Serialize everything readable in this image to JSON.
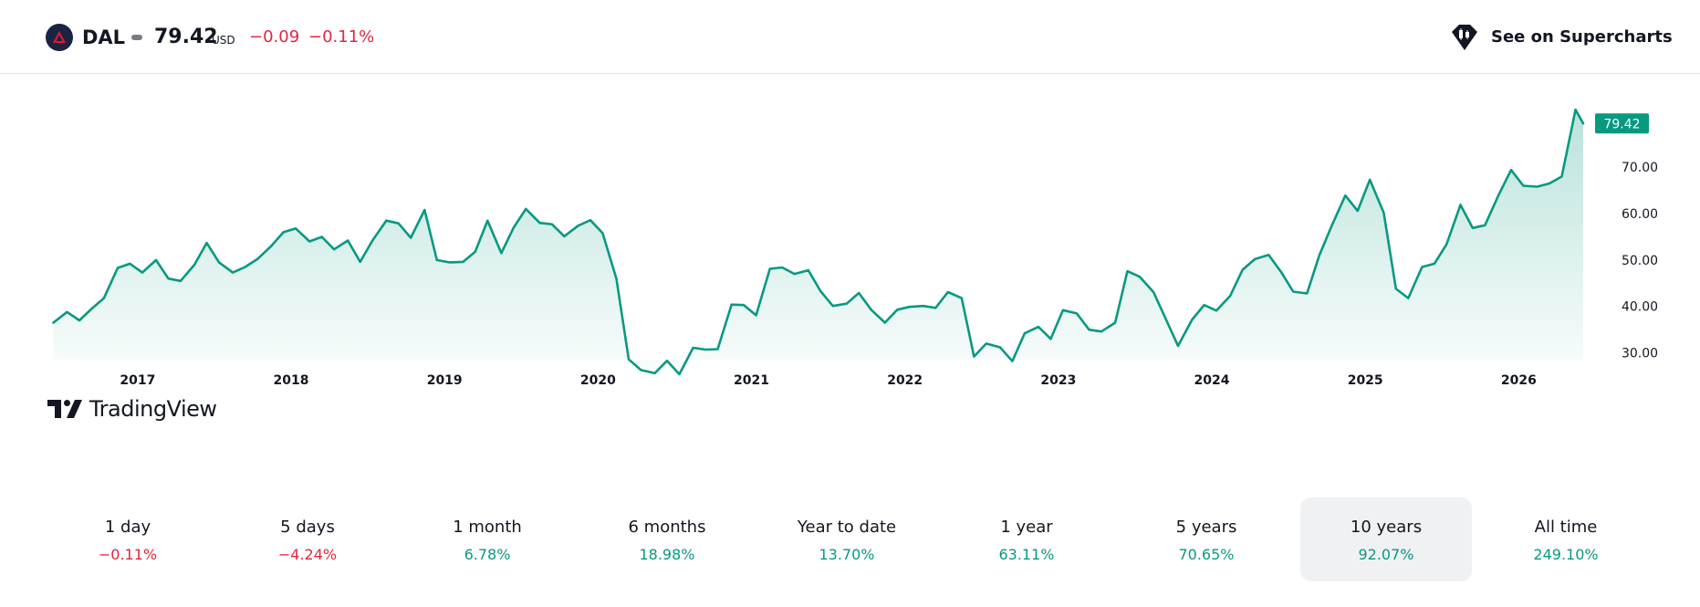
{
  "header": {
    "symbol": "DAL",
    "price": "79.42",
    "currency": "USD",
    "change": "−0.09",
    "change_percent": "−0.11%",
    "supercharts_label": "See on Supercharts",
    "logo_icon": "delta-logo-icon",
    "supercharts_icon": "tradingview-supercharts-icon"
  },
  "brand": {
    "name": "TradingView",
    "icon": "tradingview-logo-icon"
  },
  "colors": {
    "line": "#089981",
    "negative": "#e0263f",
    "positive": "#089981",
    "price_tag": "#089981"
  },
  "chart_data": {
    "type": "area",
    "x_tick_labels": [
      "2017",
      "2018",
      "2019",
      "2020",
      "2021",
      "2022",
      "2023",
      "2024",
      "2025",
      "2026"
    ],
    "x_tick_values": [
      2017,
      2018,
      2019,
      2020,
      2021,
      2022,
      2023,
      2024,
      2025,
      2026
    ],
    "y_tick_labels": [
      "30.00",
      "40.00",
      "50.00",
      "60.00",
      "70.00"
    ],
    "y_tick_values": [
      30,
      40,
      50,
      60,
      70
    ],
    "xlim": [
      2016.43,
      2026.42
    ],
    "ylim": [
      25,
      84
    ],
    "last_value_label": "79.42",
    "grid": false,
    "series": [
      {
        "x": [
          2016.45,
          2016.54,
          2016.62,
          2016.7,
          2016.78,
          2016.87,
          2016.95,
          2017.03,
          2017.12,
          2017.2,
          2017.28,
          2017.37,
          2017.45,
          2017.53,
          2017.62,
          2017.7,
          2017.78,
          2017.87,
          2017.95,
          2018.03,
          2018.12,
          2018.2,
          2018.28,
          2018.37,
          2018.45,
          2018.53,
          2018.62,
          2018.7,
          2018.78,
          2018.87,
          2018.95,
          2019.03,
          2019.12,
          2019.2,
          2019.28,
          2019.37,
          2019.45,
          2019.53,
          2019.62,
          2019.7,
          2019.78,
          2019.87,
          2019.95,
          2020.03,
          2020.12,
          2020.2,
          2020.28,
          2020.37,
          2020.45,
          2020.53,
          2020.62,
          2020.7,
          2020.78,
          2020.87,
          2020.95,
          2021.03,
          2021.12,
          2021.2,
          2021.28,
          2021.37,
          2021.45,
          2021.53,
          2021.62,
          2021.7,
          2021.78,
          2021.87,
          2021.95,
          2022.03,
          2022.12,
          2022.2,
          2022.28,
          2022.37,
          2022.45,
          2022.53,
          2022.62,
          2022.7,
          2022.78,
          2022.87,
          2022.95,
          2023.03,
          2023.12,
          2023.2,
          2023.28,
          2023.37,
          2023.45,
          2023.53,
          2023.62,
          2023.7,
          2023.78,
          2023.87,
          2023.95,
          2024.03,
          2024.12,
          2024.2,
          2024.28,
          2024.37,
          2024.45,
          2024.53,
          2024.62,
          2024.7,
          2024.78,
          2024.87,
          2024.95,
          2025.03,
          2025.12,
          2025.2,
          2025.28,
          2025.37,
          2025.45,
          2025.53,
          2025.62,
          2025.7,
          2025.78,
          2025.87,
          2025.95,
          2026.03,
          2026.12,
          2026.2,
          2026.28,
          2026.37,
          2026.42
        ],
        "y": [
          36.5,
          38.8,
          37.0,
          39.5,
          41.8,
          48.3,
          49.2,
          47.3,
          50.0,
          46.0,
          45.5,
          49.0,
          53.7,
          49.5,
          47.3,
          48.5,
          50.2,
          53.0,
          56.0,
          56.8,
          54.0,
          55.0,
          52.3,
          54.2,
          49.6,
          54.2,
          58.5,
          57.9,
          54.8,
          60.8,
          50.0,
          49.5,
          49.6,
          51.8,
          58.5,
          51.5,
          57.0,
          61.0,
          58.0,
          57.7,
          55.1,
          57.4,
          58.6,
          55.8,
          46.0,
          28.6,
          26.3,
          25.6,
          28.3,
          25.4,
          31.1,
          30.7,
          30.8,
          40.4,
          40.3,
          38.1,
          48.1,
          48.4,
          47.0,
          47.8,
          43.3,
          40.1,
          40.6,
          42.9,
          39.3,
          36.5,
          39.3,
          39.9,
          40.1,
          39.7,
          43.1,
          41.8,
          29.2,
          32.0,
          31.2,
          28.2,
          34.2,
          35.6,
          33.0,
          39.2,
          38.5,
          35.0,
          34.6,
          36.5,
          47.6,
          46.4,
          43.1,
          37.3,
          31.5,
          37.1,
          40.3,
          39.1,
          42.3,
          47.9,
          50.2,
          51.1,
          47.5,
          43.2,
          42.8,
          51.0,
          57.3,
          63.9,
          60.6,
          67.3,
          60.2,
          43.8,
          41.8,
          48.5,
          49.2,
          53.4,
          61.9,
          56.9,
          57.5,
          64.1,
          69.4,
          66.0,
          65.8,
          66.5,
          68.0,
          82.4,
          79.42
        ]
      }
    ]
  },
  "periods": [
    {
      "label": "1 day",
      "value": "−0.11%",
      "direction": "negative",
      "selected": false
    },
    {
      "label": "5 days",
      "value": "−4.24%",
      "direction": "negative",
      "selected": false
    },
    {
      "label": "1 month",
      "value": "6.78%",
      "direction": "positive",
      "selected": false
    },
    {
      "label": "6 months",
      "value": "18.98%",
      "direction": "positive",
      "selected": false
    },
    {
      "label": "Year to date",
      "value": "13.70%",
      "direction": "positive",
      "selected": false
    },
    {
      "label": "1 year",
      "value": "63.11%",
      "direction": "positive",
      "selected": false
    },
    {
      "label": "5 years",
      "value": "70.65%",
      "direction": "positive",
      "selected": false
    },
    {
      "label": "10 years",
      "value": "92.07%",
      "direction": "positive",
      "selected": true
    },
    {
      "label": "All time",
      "value": "249.10%",
      "direction": "positive",
      "selected": false
    }
  ]
}
